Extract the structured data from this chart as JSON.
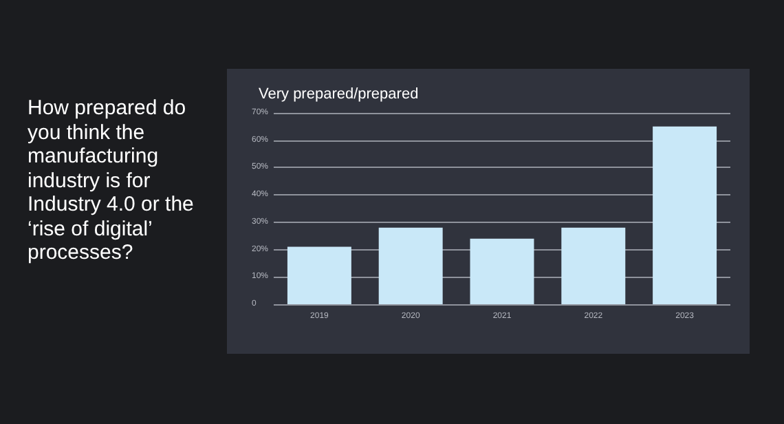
{
  "chart_data": {
    "type": "bar",
    "title": "How prepared do you think the manufacturing industry is for Industry 4.0 or the ‘rise of digital’ processes?",
    "subtitle": "Very prepared/prepared",
    "categories": [
      "2019",
      "2020",
      "2021",
      "2022",
      "2023"
    ],
    "values": [
      21,
      28,
      24,
      28,
      65
    ],
    "color": "#c9e8f8",
    "ylim": [
      0,
      70
    ],
    "yticks": [
      0,
      {
        "value": 10,
        "label": "10%"
      },
      {
        "value": 20,
        "label": "20%"
      },
      {
        "value": 30,
        "label": "30%"
      },
      {
        "value": 40,
        "label": "40%"
      },
      {
        "value": 50,
        "label": "50%"
      },
      {
        "value": 60,
        "label": "60%"
      },
      {
        "value": 70,
        "label": "70%"
      }
    ],
    "grid": "y"
  }
}
